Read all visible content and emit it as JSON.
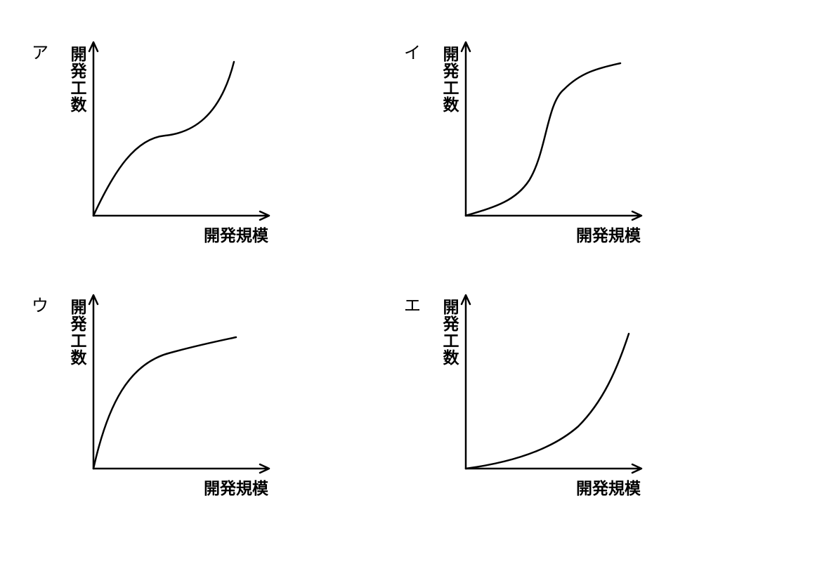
{
  "panels": [
    {
      "label": "ア",
      "y_axis_label": "開発工数",
      "x_axis_label": "開発規模"
    },
    {
      "label": "イ",
      "y_axis_label": "開発工数",
      "x_axis_label": "開発規模"
    },
    {
      "label": "ウ",
      "y_axis_label": "開発工数",
      "x_axis_label": "開発規模"
    },
    {
      "label": "エ",
      "y_axis_label": "開発工数",
      "x_axis_label": "開発規模"
    }
  ]
}
